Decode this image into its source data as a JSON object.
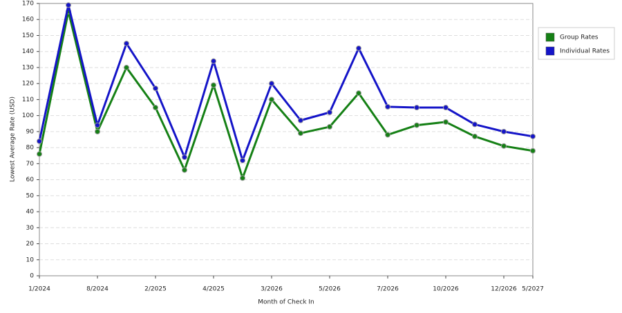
{
  "chart_data": {
    "type": "line",
    "x_label": "Month of Check In",
    "y_label": "Lowest Average Rate (USD)",
    "categories": [
      "1/2024",
      null,
      "8/2024",
      null,
      "2/2025",
      null,
      "4/2025",
      null,
      "3/2026",
      null,
      "5/2026",
      null,
      "7/2026",
      null,
      "10/2026",
      null,
      "12/2026",
      "5/2027"
    ],
    "series": [
      {
        "name": "Group Rates",
        "color": "#158015",
        "values": [
          76,
          165,
          90,
          130,
          105,
          66,
          119,
          61,
          110,
          89,
          93,
          114,
          88,
          94,
          96,
          87,
          81,
          78
        ]
      },
      {
        "name": "Individual Rates",
        "color": "#1414c8",
        "values": [
          84,
          169,
          94,
          145,
          117,
          74,
          134,
          72,
          120,
          97,
          102,
          142,
          105.5,
          105,
          105,
          94.5,
          90,
          87
        ]
      }
    ],
    "ylim": [
      0,
      170
    ],
    "yticks": [
      0,
      10,
      20,
      30,
      40,
      50,
      60,
      70,
      80,
      90,
      100,
      110,
      120,
      130,
      140,
      150,
      160,
      170
    ],
    "grid": true,
    "legend": "right"
  }
}
